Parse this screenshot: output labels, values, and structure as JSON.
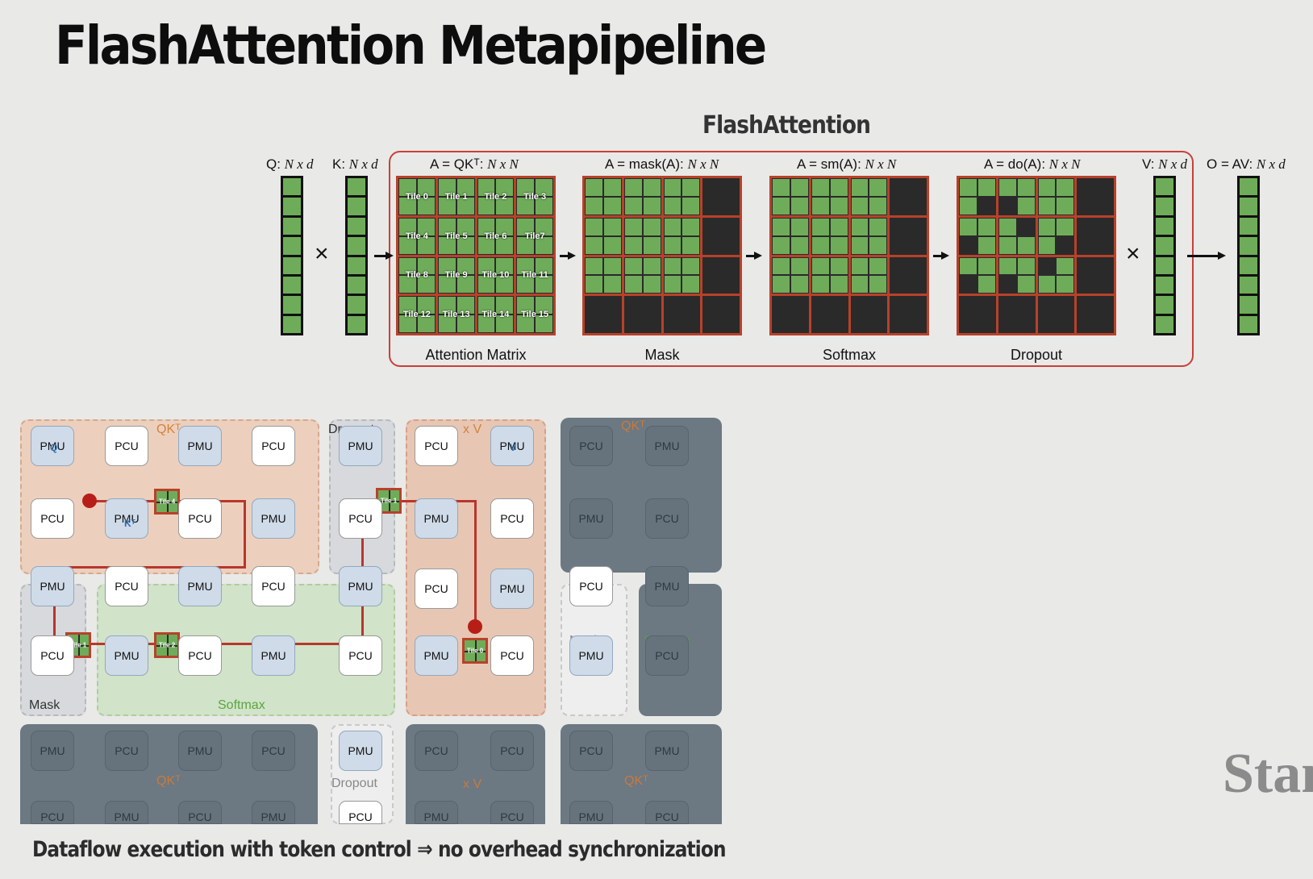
{
  "slide": {
    "title": "FlashAttention Metapipeline",
    "caption": "Dataflow execution with token control ⇒ no overhead synchronization",
    "watermark": "Stan"
  },
  "pipeline": {
    "title": "FlashAttention",
    "q_label": "Q: ",
    "q_dim": "N x d",
    "k_label": "K: ",
    "k_dim": "N x d",
    "times": "×",
    "stages": [
      {
        "formula": "A = QKᵀ: ",
        "dim": "N x N",
        "caption": "Attention Matrix"
      },
      {
        "formula": "A = mask(A): ",
        "dim": "N x N",
        "caption": "Mask"
      },
      {
        "formula": "A = sm(A): ",
        "dim": "N x N",
        "caption": "Softmax"
      },
      {
        "formula": "A = do(A): ",
        "dim": "N x N",
        "caption": "Dropout"
      }
    ],
    "v_label": "V: ",
    "v_dim": "N x d",
    "o_label": "O = AV: ",
    "o_dim": "N x d",
    "tile_labels": [
      "Tile 0",
      "Tile 1",
      "Tile 2",
      "Tile 3",
      "Tile 4",
      "Tile 5",
      "Tile 6",
      "Tile7",
      "Tile 8",
      "Tile 9",
      "Tile 10",
      "Tile 11",
      "Tile 12",
      "Tile 13",
      "Tile 14",
      "Tile 15"
    ]
  },
  "fabric": {
    "regions": {
      "qkt": "QKᵀ",
      "dropout": "Dropout",
      "xv": "x V",
      "mask": "Mask",
      "softmax": "Softmax"
    },
    "unit_tags": {
      "q": "Q",
      "kt": "Kᵀ",
      "v": "V"
    },
    "tokens": [
      "Tile 4",
      "Tile 1",
      "Tile 1",
      "Tile 2",
      "Tile 0"
    ],
    "units": {
      "pcu": "PCU",
      "pmu": "PMU"
    }
  },
  "colors": {
    "tile_green": "#6fac59",
    "tile_border": "#b8412a",
    "frame_red": "#c8403a",
    "qkt_region": "#ecd0bd",
    "softmax_region": "#d1e3c9",
    "inactive_region": "#6c7882"
  }
}
